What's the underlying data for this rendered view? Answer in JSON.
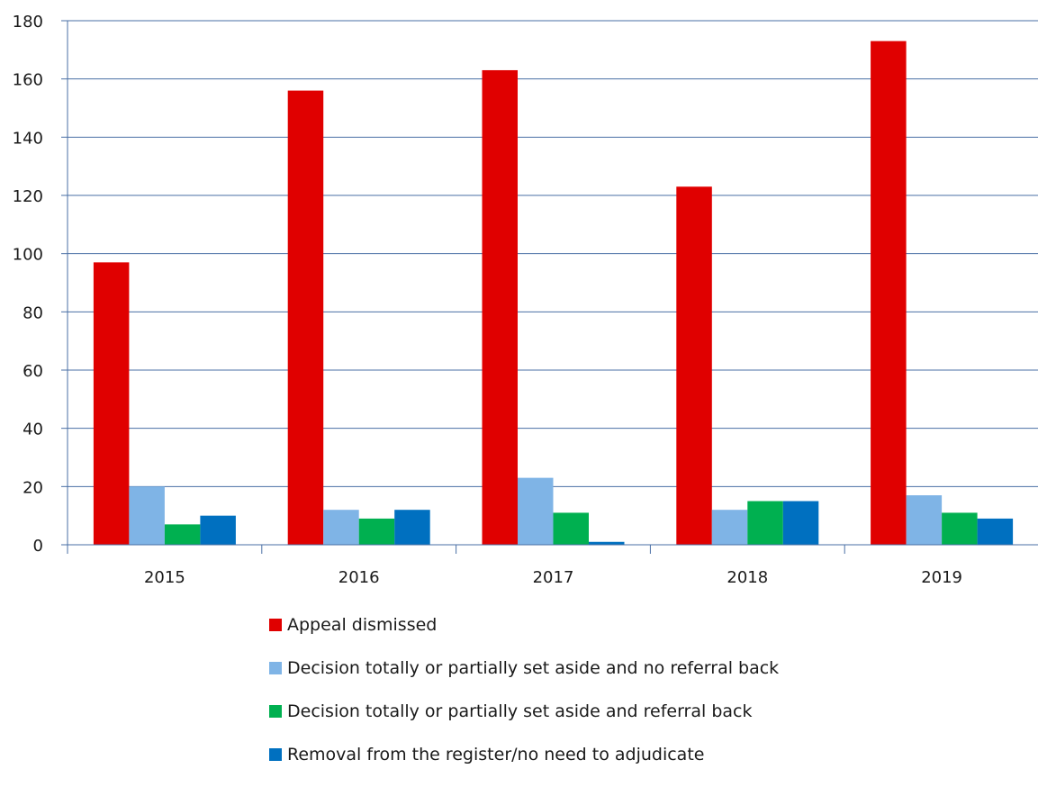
{
  "chart_data": {
    "type": "bar",
    "categories": [
      "2015",
      "2016",
      "2017",
      "2018",
      "2019"
    ],
    "series": [
      {
        "name": "Appeal dismissed",
        "color": "#e00000",
        "values": [
          97,
          156,
          163,
          123,
          173
        ]
      },
      {
        "name": "Decision totally or partially set aside and no referral back",
        "color": "#7fb4e6",
        "values": [
          20,
          12,
          23,
          12,
          17
        ]
      },
      {
        "name": "Decision totally or partially set aside and referral back",
        "color": "#00b050",
        "values": [
          7,
          9,
          11,
          15,
          11
        ]
      },
      {
        "name": "Removal from the register/no need to adjudicate",
        "color": "#0070c0",
        "values": [
          10,
          12,
          1,
          15,
          9
        ]
      }
    ],
    "title": "",
    "xlabel": "",
    "ylabel": "",
    "ylim": [
      0,
      180
    ],
    "yticks": [
      "0",
      "20",
      "40",
      "60",
      "80",
      "100",
      "120",
      "140",
      "160",
      "180"
    ],
    "grid": true,
    "gridline_color": "#4a6fa5",
    "legend_position": "bottom"
  }
}
